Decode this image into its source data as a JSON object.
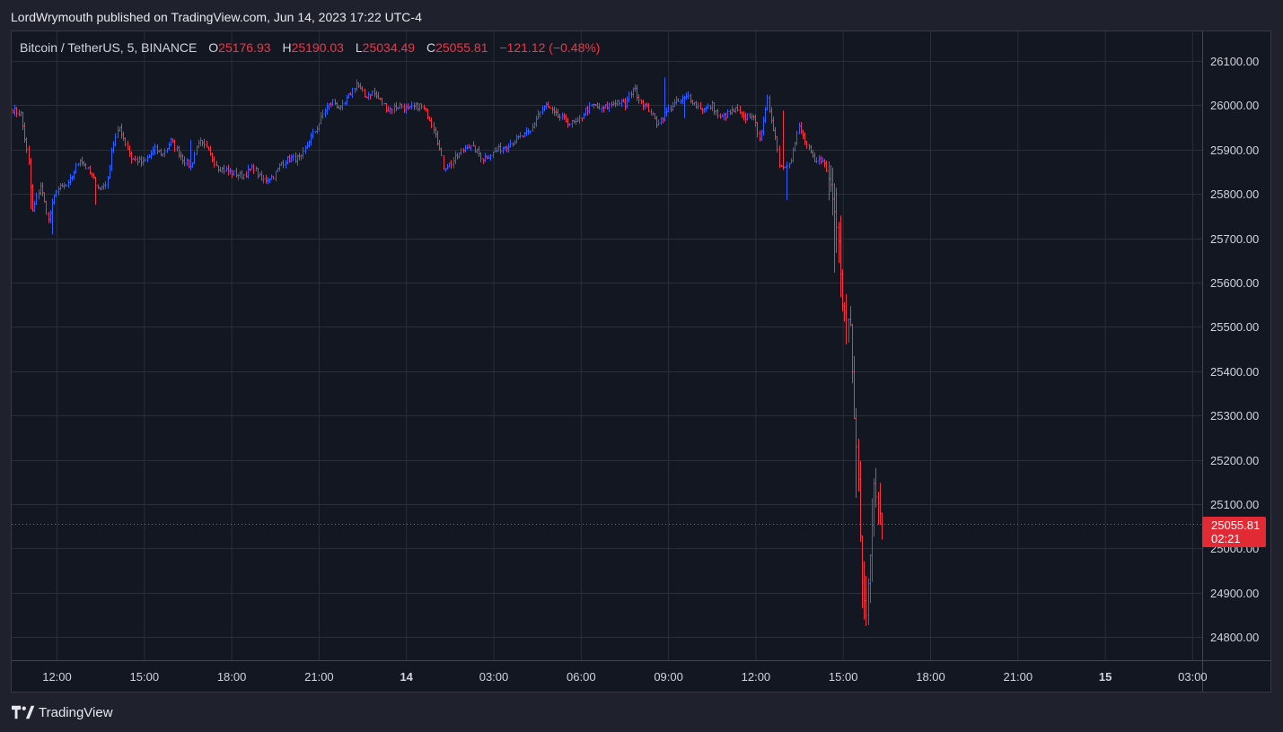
{
  "header": {
    "publisher": "LordWrymouth published on TradingView.com, Jun 14, 2023 17:22 UTC-4"
  },
  "legend": {
    "symbol": "Bitcoin / TetherUS, 5, BINANCE",
    "open_label": "O",
    "open": "25176.93",
    "high_label": "H",
    "high": "25190.03",
    "low_label": "L",
    "low": "25034.49",
    "close_label": "C",
    "close": "25055.81",
    "change": "−121.12 (−0.48%)"
  },
  "price_tag": {
    "price": "25055.81",
    "countdown": "02:21"
  },
  "footer": {
    "brand": "TradingView",
    "logo_icon": "tradingview-logo-icon"
  },
  "colors": {
    "up": "#2962ff",
    "down": "#f23645",
    "background": "#131722",
    "grid": "#2a2e39"
  },
  "chart_data": {
    "type": "ohlc",
    "interval_minutes": 5,
    "ylim": [
      24750,
      26150
    ],
    "y_ticks": [
      "26100.00",
      "26000.00",
      "25900.00",
      "25800.00",
      "25700.00",
      "25600.00",
      "25500.00",
      "25400.00",
      "25300.00",
      "25200.00",
      "25100.00",
      "25000.00",
      "24900.00",
      "24800.00"
    ],
    "x_ticks": [
      {
        "label": "12:00",
        "bold": false
      },
      {
        "label": "15:00",
        "bold": false
      },
      {
        "label": "18:00",
        "bold": false
      },
      {
        "label": "21:00",
        "bold": false
      },
      {
        "label": "14",
        "bold": true
      },
      {
        "label": "03:00",
        "bold": false
      },
      {
        "label": "06:00",
        "bold": false
      },
      {
        "label": "09:00",
        "bold": false
      },
      {
        "label": "12:00",
        "bold": false
      },
      {
        "label": "15:00",
        "bold": false
      },
      {
        "label": "18:00",
        "bold": false
      },
      {
        "label": "21:00",
        "bold": false
      },
      {
        "label": "15",
        "bold": true
      },
      {
        "label": "03:00",
        "bold": false
      }
    ],
    "last_price": 25055.81,
    "path": [
      [
        0,
        25990
      ],
      [
        4,
        25980
      ],
      [
        8,
        25870
      ],
      [
        10,
        25760
      ],
      [
        14,
        25820
      ],
      [
        18,
        25740
      ],
      [
        22,
        25810
      ],
      [
        28,
        25820
      ],
      [
        34,
        25880
      ],
      [
        40,
        25840
      ],
      [
        44,
        25810
      ],
      [
        48,
        25830
      ],
      [
        50,
        25900
      ],
      [
        54,
        25950
      ],
      [
        60,
        25880
      ],
      [
        66,
        25870
      ],
      [
        72,
        25900
      ],
      [
        76,
        25890
      ],
      [
        80,
        25920
      ],
      [
        86,
        25880
      ],
      [
        90,
        25860
      ],
      [
        94,
        25920
      ],
      [
        98,
        25900
      ],
      [
        104,
        25860
      ],
      [
        110,
        25850
      ],
      [
        116,
        25840
      ],
      [
        122,
        25860
      ],
      [
        126,
        25830
      ],
      [
        132,
        25840
      ],
      [
        136,
        25870
      ],
      [
        140,
        25880
      ],
      [
        146,
        25880
      ],
      [
        150,
        25920
      ],
      [
        154,
        25950
      ],
      [
        158,
        25990
      ],
      [
        162,
        26010
      ],
      [
        166,
        25990
      ],
      [
        170,
        26020
      ],
      [
        174,
        26050
      ],
      [
        178,
        26020
      ],
      [
        182,
        26030
      ],
      [
        186,
        26010
      ],
      [
        190,
        25990
      ],
      [
        196,
        26000
      ],
      [
        200,
        25990
      ],
      [
        206,
        26000
      ],
      [
        210,
        25980
      ],
      [
        214,
        25940
      ],
      [
        218,
        25860
      ],
      [
        222,
        25870
      ],
      [
        226,
        25890
      ],
      [
        230,
        25910
      ],
      [
        234,
        25900
      ],
      [
        238,
        25880
      ],
      [
        242,
        25890
      ],
      [
        246,
        25900
      ],
      [
        250,
        25910
      ],
      [
        254,
        25920
      ],
      [
        258,
        25930
      ],
      [
        262,
        25940
      ],
      [
        266,
        25980
      ],
      [
        270,
        26000
      ],
      [
        274,
        25980
      ],
      [
        278,
        25970
      ],
      [
        282,
        25960
      ],
      [
        286,
        25960
      ],
      [
        290,
        25990
      ],
      [
        294,
        26000
      ],
      [
        298,
        25990
      ],
      [
        302,
        26000
      ],
      [
        306,
        26010
      ],
      [
        310,
        26000
      ],
      [
        314,
        26040
      ],
      [
        318,
        26010
      ],
      [
        322,
        25990
      ],
      [
        326,
        25960
      ],
      [
        330,
        25980
      ],
      [
        334,
        26000
      ],
      [
        338,
        26010
      ],
      [
        342,
        26020
      ],
      [
        346,
        26000
      ],
      [
        350,
        25990
      ],
      [
        354,
        26000
      ],
      [
        358,
        25970
      ],
      [
        362,
        25980
      ],
      [
        366,
        25990
      ],
      [
        370,
        25970
      ],
      [
        374,
        25980
      ],
      [
        378,
        25930
      ],
      [
        380,
        25960
      ],
      [
        382,
        26010
      ],
      [
        384,
        25970
      ],
      [
        386,
        25930
      ],
      [
        388,
        25870
      ],
      [
        390,
        25860
      ],
      [
        394,
        25880
      ],
      [
        398,
        25950
      ],
      [
        402,
        25910
      ],
      [
        406,
        25870
      ],
      [
        410,
        25880
      ],
      [
        414,
        25820
      ],
      [
        418,
        25700
      ],
      [
        420,
        25550
      ],
      [
        422,
        25520
      ],
      [
        424,
        25510
      ],
      [
        426,
        25300
      ],
      [
        428,
        25150
      ],
      [
        430,
        24920
      ],
      [
        432,
        24850
      ],
      [
        434,
        24980
      ],
      [
        436,
        25140
      ],
      [
        438,
        25100
      ],
      [
        440,
        25060
      ]
    ],
    "spikes": [
      {
        "t": 9,
        "dir": "low",
        "extra": 40
      },
      {
        "t": 20,
        "dir": "low",
        "extra": 40
      },
      {
        "t": 42,
        "dir": "low",
        "extra": 35
      },
      {
        "t": 90,
        "dir": "high",
        "extra": 60
      },
      {
        "t": 330,
        "dir": "high",
        "extra": 70
      },
      {
        "t": 340,
        "dir": "low",
        "extra": 40
      },
      {
        "t": 390,
        "dir": "high",
        "extra": 120
      },
      {
        "t": 392,
        "dir": "low",
        "extra": 70
      },
      {
        "t": 416,
        "dir": "low",
        "extra": 120
      },
      {
        "t": 427,
        "dir": "low",
        "extra": 90
      }
    ]
  }
}
